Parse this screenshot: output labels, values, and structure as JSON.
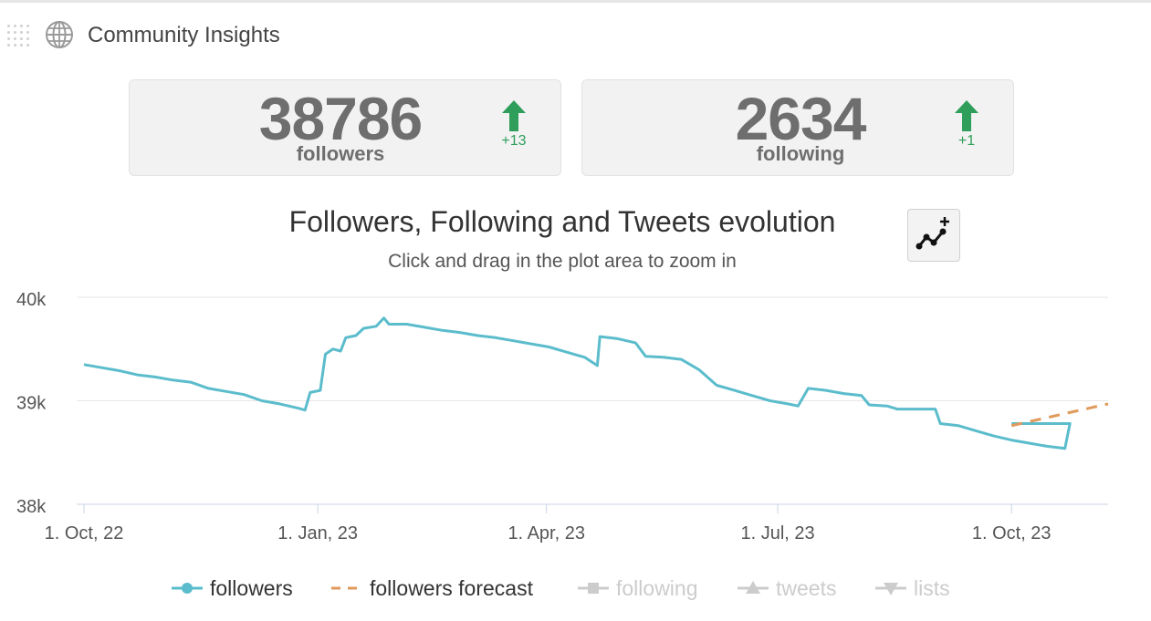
{
  "header": {
    "title": "Community Insights"
  },
  "stats": [
    {
      "value": "38786",
      "label": "followers",
      "delta": "+13"
    },
    {
      "value": "2634",
      "label": "following",
      "delta": "+1"
    }
  ],
  "colors": {
    "followers": "#5bbccc",
    "forecast": "#e09a5c",
    "muted": "#cccccc",
    "up": "#2e9e5a"
  },
  "chart_data": {
    "type": "line",
    "title": "Followers, Following and Tweets evolution",
    "subtitle": "Click and drag in the plot area to zoom in",
    "x_ticks": [
      "1. Oct, 22",
      "1. Jan, 23",
      "1. Apr, 23",
      "1. Jul, 23",
      "1. Oct, 23"
    ],
    "y_ticks": [
      "40k",
      "39k",
      "38k"
    ],
    "ylim": [
      38000,
      40000
    ],
    "xlim": [
      "2022-10-01",
      "2023-11-08"
    ],
    "grid": true,
    "legend_position": "bottom",
    "series": [
      {
        "name": "followers",
        "color": "#5bbccc",
        "points": [
          [
            "2022-10-01",
            39350
          ],
          [
            "2022-10-08",
            39320
          ],
          [
            "2022-10-15",
            39290
          ],
          [
            "2022-10-22",
            39250
          ],
          [
            "2022-10-29",
            39230
          ],
          [
            "2022-11-05",
            39200
          ],
          [
            "2022-11-12",
            39180
          ],
          [
            "2022-11-19",
            39120
          ],
          [
            "2022-11-26",
            39090
          ],
          [
            "2022-12-03",
            39060
          ],
          [
            "2022-12-10",
            39000
          ],
          [
            "2022-12-17",
            38970
          ],
          [
            "2022-12-24",
            38930
          ],
          [
            "2022-12-27",
            38910
          ],
          [
            "2022-12-29",
            39080
          ],
          [
            "2023-01-02",
            39100
          ],
          [
            "2023-01-04",
            39450
          ],
          [
            "2023-01-07",
            39500
          ],
          [
            "2023-01-10",
            39480
          ],
          [
            "2023-01-12",
            39610
          ],
          [
            "2023-01-16",
            39630
          ],
          [
            "2023-01-19",
            39700
          ],
          [
            "2023-01-24",
            39720
          ],
          [
            "2023-01-27",
            39800
          ],
          [
            "2023-01-29",
            39740
          ],
          [
            "2023-02-05",
            39740
          ],
          [
            "2023-02-12",
            39710
          ],
          [
            "2023-02-19",
            39680
          ],
          [
            "2023-02-26",
            39660
          ],
          [
            "2023-03-05",
            39630
          ],
          [
            "2023-03-12",
            39610
          ],
          [
            "2023-03-19",
            39580
          ],
          [
            "2023-03-26",
            39550
          ],
          [
            "2023-04-02",
            39520
          ],
          [
            "2023-04-09",
            39470
          ],
          [
            "2023-04-16",
            39420
          ],
          [
            "2023-04-21",
            39340
          ],
          [
            "2023-04-22",
            39620
          ],
          [
            "2023-04-29",
            39600
          ],
          [
            "2023-05-06",
            39560
          ],
          [
            "2023-05-10",
            39430
          ],
          [
            "2023-05-17",
            39420
          ],
          [
            "2023-05-24",
            39400
          ],
          [
            "2023-05-31",
            39300
          ],
          [
            "2023-06-07",
            39150
          ],
          [
            "2023-06-14",
            39100
          ],
          [
            "2023-06-21",
            39050
          ],
          [
            "2023-06-28",
            39000
          ],
          [
            "2023-07-05",
            38970
          ],
          [
            "2023-07-09",
            38950
          ],
          [
            "2023-07-13",
            39120
          ],
          [
            "2023-07-20",
            39100
          ],
          [
            "2023-07-27",
            39070
          ],
          [
            "2023-08-03",
            39050
          ],
          [
            "2023-08-06",
            38960
          ],
          [
            "2023-08-13",
            38950
          ],
          [
            "2023-08-17",
            38920
          ],
          [
            "2023-09-01",
            38920
          ],
          [
            "2023-09-03",
            38780
          ],
          [
            "2023-09-10",
            38760
          ],
          [
            "2023-09-17",
            38710
          ],
          [
            "2023-09-24",
            38660
          ],
          [
            "2023-10-01",
            38620
          ],
          [
            "2023-10-08",
            38590
          ],
          [
            "2023-10-15",
            38560
          ],
          [
            "2023-10-22",
            38540
          ],
          [
            "2023-10-24",
            38780
          ],
          [
            "2023-09-28",
            38780
          ]
        ]
      },
      {
        "name": "followers forecast",
        "color": "#e09a5c",
        "dashed": true,
        "points": [
          [
            "2023-10-01",
            38760
          ],
          [
            "2023-11-08",
            38970
          ]
        ]
      },
      {
        "name": "following",
        "color": "#cccccc",
        "hidden": true,
        "points": []
      },
      {
        "name": "tweets",
        "color": "#cccccc",
        "hidden": true,
        "points": []
      },
      {
        "name": "lists",
        "color": "#cccccc",
        "hidden": true,
        "points": []
      }
    ]
  }
}
